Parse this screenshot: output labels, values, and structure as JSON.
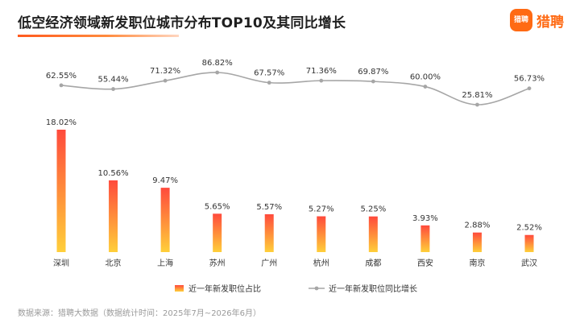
{
  "header": {
    "title": "低空经济领域新发职位城市分布TOP10及其同比增长",
    "logo_badge": "猎聘",
    "logo_text": "猎聘"
  },
  "footer": {
    "source": "数据来源：猎聘大数据（数据统计时间：2025年7月~2026年6月）"
  },
  "colors": {
    "bar_top": "#ff4a3c",
    "bar_bottom": "#ffcf3a",
    "line": "#a6a6a6",
    "accent": "#ff6a13"
  },
  "chart_data": {
    "type": "bar",
    "categories": [
      "深圳",
      "北京",
      "上海",
      "苏州",
      "广州",
      "杭州",
      "成都",
      "西安",
      "南京",
      "武汉"
    ],
    "series": [
      {
        "name": "近一年新发职位占比",
        "type": "bar",
        "values": [
          18.02,
          10.56,
          9.47,
          5.65,
          5.57,
          5.27,
          5.25,
          3.93,
          2.88,
          2.52
        ],
        "labels": [
          "18.02%",
          "10.56%",
          "9.47%",
          "5.65%",
          "5.57%",
          "5.27%",
          "5.25%",
          "3.93%",
          "2.88%",
          "2.52%"
        ]
      },
      {
        "name": "近一年新发职位同比增长",
        "type": "line",
        "values": [
          62.55,
          55.44,
          71.32,
          86.82,
          67.57,
          71.36,
          69.87,
          60.0,
          25.81,
          56.73
        ],
        "labels": [
          "62.55%",
          "55.44%",
          "71.32%",
          "86.82%",
          "67.57%",
          "71.36%",
          "69.87%",
          "60.00%",
          "25.81%",
          "56.73%"
        ]
      }
    ],
    "legend_position": "bottom-center",
    "grid": false
  }
}
